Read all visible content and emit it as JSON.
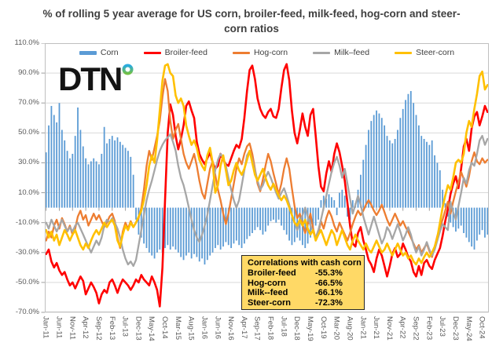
{
  "title": "% of rolling 5 year average for US corn, broiler-feed, milk-feed, hog-corn and steer-corn ratios",
  "logo": {
    "text": "DTN",
    "ring_blue": "#29ABE2",
    "ring_green": "#72BF44"
  },
  "correlation_box": {
    "title": "Correlations with cash corn",
    "background": "#FFD966",
    "rows": [
      {
        "label": "Broiler-feed",
        "value": "-55.3%"
      },
      {
        "label": "Hog-corn",
        "value": "-66.5%"
      },
      {
        "label": "Milk--feed",
        "value": "-66.1%"
      },
      {
        "label": "Steer-corn",
        "value": "-72.3%"
      }
    ]
  },
  "chart_data": {
    "type": "bar+line combo",
    "x": {
      "start": "Jan-2011",
      "end": "Dec-2024",
      "freq": "monthly",
      "count": 168
    },
    "ylim": [
      -70,
      110
    ],
    "grid": "horizontal only",
    "legend_position": "top center inside plot",
    "y_tick_labels": [
      "110.0%",
      "90.0%",
      "70.0%",
      "50.0%",
      "30.0%",
      "10.0%",
      "-10.0%",
      "-30.0%",
      "-50.0%",
      "-70.0%"
    ],
    "x_ticks": [
      {
        "i": 0,
        "label": "Jan-11"
      },
      {
        "i": 5,
        "label": "Jun-11"
      },
      {
        "i": 10,
        "label": "Nov-11"
      },
      {
        "i": 15,
        "label": "Apr-12"
      },
      {
        "i": 20,
        "label": "Sep-12"
      },
      {
        "i": 25,
        "label": "Feb-13"
      },
      {
        "i": 30,
        "label": "Jul-13"
      },
      {
        "i": 35,
        "label": "Dec-13"
      },
      {
        "i": 40,
        "label": "May-14"
      },
      {
        "i": 45,
        "label": "Oct-14"
      },
      {
        "i": 50,
        "label": "Mar-15"
      },
      {
        "i": 55,
        "label": "Aug-15"
      },
      {
        "i": 60,
        "label": "Jan-16"
      },
      {
        "i": 65,
        "label": "Jun-16"
      },
      {
        "i": 70,
        "label": "Nov-16"
      },
      {
        "i": 75,
        "label": "Apr-17"
      },
      {
        "i": 80,
        "label": "Sep-17"
      },
      {
        "i": 85,
        "label": "Feb-18"
      },
      {
        "i": 90,
        "label": "Jul-18"
      },
      {
        "i": 95,
        "label": "Dec-18"
      },
      {
        "i": 100,
        "label": "May-19"
      },
      {
        "i": 105,
        "label": "Oct-19"
      },
      {
        "i": 110,
        "label": "Mar-20"
      },
      {
        "i": 115,
        "label": "Aug-20"
      },
      {
        "i": 120,
        "label": "Jan-21"
      },
      {
        "i": 125,
        "label": "Jun-21"
      },
      {
        "i": 130,
        "label": "Nov-21"
      },
      {
        "i": 135,
        "label": "Apr-22"
      },
      {
        "i": 140,
        "label": "Sep-22"
      },
      {
        "i": 145,
        "label": "Feb-23"
      },
      {
        "i": 150,
        "label": "Jul-23"
      },
      {
        "i": 155,
        "label": "Dec-23"
      },
      {
        "i": 160,
        "label": "May-24"
      },
      {
        "i": 165,
        "label": "Oct-24"
      }
    ],
    "series": [
      {
        "name": "Corn",
        "type": "bar",
        "color": "#5B9BD5",
        "values": [
          37,
          55,
          68,
          62,
          57,
          70,
          52,
          45,
          38,
          33,
          36,
          48,
          67,
          52,
          41,
          33,
          29,
          31,
          33,
          31,
          29,
          36,
          54,
          43,
          46,
          48,
          45,
          47,
          44,
          42,
          40,
          38,
          34,
          22,
          -8,
          -18,
          -20,
          -24,
          -27,
          -30,
          -32,
          -34,
          -30,
          -28,
          -30,
          -27,
          -25,
          -28,
          -26,
          -28,
          -30,
          -33,
          -35,
          -32,
          -30,
          -34,
          -31,
          -33,
          -36,
          -34,
          -38,
          -35,
          -32,
          -30,
          -27,
          -25,
          -28,
          -26,
          -23,
          -25,
          -27,
          -24,
          -22,
          -25,
          -27,
          -24,
          -21,
          -19,
          -17,
          -15,
          -13,
          -15,
          -18,
          -16,
          -12,
          -9,
          -8,
          -10,
          -8,
          -12,
          -15,
          -18,
          -22,
          -25,
          -23,
          -20,
          -22,
          -25,
          -27,
          -24,
          -20,
          -16,
          -12,
          -8,
          5,
          8,
          6,
          9,
          7,
          5,
          -5,
          10,
          12,
          8,
          -6,
          -8,
          5,
          3,
          12,
          22,
          32,
          42,
          52,
          58,
          62,
          65,
          63,
          60,
          55,
          48,
          45,
          43,
          46,
          52,
          60,
          66,
          72,
          76,
          78,
          70,
          62,
          55,
          48,
          46,
          44,
          42,
          45,
          35,
          30,
          25,
          12,
          3,
          -6,
          -10,
          -13,
          -16,
          -14,
          -12,
          -17,
          -20,
          -23,
          -26,
          -28,
          -22,
          -18,
          -15,
          -20,
          -18
        ]
      },
      {
        "name": "Broiler-feed",
        "type": "line",
        "color": "#FF0000",
        "width": 2.6,
        "values": [
          -31,
          -28,
          -36,
          -40,
          -37,
          -42,
          -45,
          -43,
          -48,
          -52,
          -50,
          -54,
          -50,
          -46,
          -49,
          -58,
          -54,
          -50,
          -53,
          -57,
          -64,
          -58,
          -55,
          -57,
          -50,
          -48,
          -52,
          -57,
          -52,
          -48,
          -50,
          -52,
          -55,
          -52,
          -48,
          -50,
          -45,
          -48,
          -50,
          -52,
          -46,
          -50,
          -55,
          -66,
          -40,
          5,
          50,
          69,
          62,
          48,
          39,
          46,
          55,
          68,
          71,
          65,
          60,
          44,
          36,
          32,
          29,
          33,
          37,
          30,
          26,
          28,
          36,
          32,
          29,
          28,
          33,
          38,
          42,
          40,
          46,
          60,
          78,
          92,
          95,
          86,
          73,
          66,
          62,
          60,
          64,
          66,
          61,
          60,
          66,
          80,
          92,
          96,
          85,
          65,
          50,
          43,
          52,
          63,
          54,
          48,
          62,
          66,
          48,
          28,
          14,
          11,
          23,
          31,
          24,
          36,
          43,
          37,
          28,
          18,
          3,
          -12,
          -24,
          -26,
          -17,
          -13,
          -22,
          -28,
          -35,
          -38,
          -43,
          -34,
          -28,
          -32,
          -39,
          -46,
          -39,
          -31,
          -27,
          -33,
          -31,
          -24,
          -28,
          -33,
          -36,
          -43,
          -46,
          -39,
          -45,
          -37,
          -35,
          -39,
          -41,
          -35,
          -31,
          -27,
          -19,
          -9,
          -1,
          9,
          16,
          21,
          13,
          26,
          41,
          46,
          38,
          53,
          61,
          64,
          55,
          61,
          68,
          64
        ]
      },
      {
        "name": "Hog-corn",
        "type": "line",
        "color": "#ED7D31",
        "width": 2.3,
        "values": [
          -22,
          -16,
          -20,
          -12,
          -8,
          -14,
          -7,
          -11,
          -16,
          -12,
          -18,
          -14,
          -6,
          -2,
          -8,
          -5,
          -12,
          -8,
          -4,
          -8,
          -5,
          -9,
          -13,
          -10,
          -6,
          -4,
          -9,
          -20,
          -27,
          -16,
          -10,
          -14,
          -9,
          -13,
          -10,
          -7,
          0,
          12,
          28,
          38,
          32,
          40,
          48,
          58,
          74,
          86,
          78,
          58,
          46,
          52,
          56,
          46,
          36,
          30,
          26,
          31,
          36,
          28,
          18,
          10,
          6,
          16,
          26,
          31,
          22,
          12,
          5,
          -4,
          -11,
          -4,
          6,
          16,
          26,
          33,
          29,
          36,
          41,
          43,
          36,
          26,
          16,
          11,
          19,
          28,
          36,
          31,
          23,
          16,
          9,
          16,
          26,
          33,
          26,
          13,
          1,
          -7,
          -4,
          -11,
          -17,
          -11,
          -4,
          -14,
          -21,
          -17,
          -9,
          -14,
          -7,
          -2,
          -6,
          -12,
          -16,
          -10,
          -14,
          -18,
          -22,
          -17,
          -11,
          -6,
          -2,
          -5,
          -2,
          2,
          5,
          2,
          -2,
          -5,
          -2,
          2,
          -3,
          -8,
          -12,
          -8,
          -4,
          -8,
          -12,
          -9,
          -13,
          -16,
          -20,
          -24,
          -28,
          -25,
          -30,
          -27,
          -24,
          -29,
          -33,
          -26,
          -19,
          -13,
          -8,
          -2,
          4,
          -4,
          4,
          11,
          17,
          24,
          19,
          14,
          21,
          31,
          37,
          31,
          29,
          33,
          30,
          32
        ]
      },
      {
        "name": "Milk–feed",
        "type": "line",
        "color": "#A6A6A6",
        "width": 2.3,
        "values": [
          -10,
          -14,
          -8,
          -12,
          -16,
          -12,
          -8,
          -12,
          -16,
          -13,
          -16,
          -12,
          -10,
          -14,
          -18,
          -22,
          -26,
          -30,
          -26,
          -22,
          -25,
          -20,
          -12,
          -8,
          -10,
          -7,
          -10,
          -14,
          -20,
          -28,
          -34,
          -38,
          -36,
          -39,
          -35,
          -25,
          -15,
          -5,
          5,
          12,
          18,
          25,
          32,
          38,
          42,
          45,
          47,
          49,
          44,
          38,
          28,
          20,
          15,
          8,
          0,
          -8,
          -15,
          -20,
          -23,
          -18,
          -12,
          -5,
          5,
          15,
          25,
          32,
          36,
          33,
          28,
          20,
          12,
          5,
          0,
          5,
          15,
          25,
          35,
          38,
          32,
          25,
          18,
          12,
          15,
          20,
          24,
          20,
          15,
          10,
          6,
          10,
          13,
          8,
          2,
          -5,
          -10,
          -15,
          -10,
          -5,
          0,
          -6,
          -12,
          -16,
          -20,
          -15,
          -8,
          0,
          8,
          16,
          24,
          30,
          34,
          28,
          20,
          26,
          16,
          6,
          -4,
          2,
          8,
          2,
          -6,
          -12,
          -18,
          -12,
          -6,
          -12,
          -18,
          -24,
          -20,
          -13,
          -16,
          -21,
          -16,
          -11,
          -16,
          -22,
          -18,
          -13,
          -18,
          -25,
          -30,
          -26,
          -32,
          -28,
          -23,
          -28,
          -32,
          -28,
          -22,
          -16,
          -11,
          -13,
          -15,
          4,
          -3,
          -8,
          1,
          10,
          20,
          16,
          25,
          30,
          28,
          36,
          45,
          48,
          42,
          46
        ]
      },
      {
        "name": "Steer-corn",
        "type": "line",
        "color": "#FFC000",
        "width": 2.6,
        "values": [
          -15,
          -20,
          -16,
          -22,
          -18,
          -25,
          -20,
          -15,
          -18,
          -22,
          -18,
          -15,
          -20,
          -25,
          -28,
          -24,
          -27,
          -22,
          -18,
          -15,
          -18,
          -14,
          -10,
          -13,
          -10,
          -8,
          -12,
          -22,
          -26,
          -18,
          -12,
          -15,
          -10,
          -13,
          -10,
          -6,
          -2,
          5,
          15,
          28,
          35,
          30,
          45,
          65,
          85,
          95,
          96,
          90,
          88,
          75,
          70,
          73,
          68,
          55,
          48,
          42,
          45,
          40,
          32,
          28,
          25,
          35,
          40,
          30,
          10,
          15,
          28,
          35,
          25,
          15,
          18,
          25,
          30,
          25,
          22,
          26,
          32,
          38,
          30,
          22,
          18,
          22,
          26,
          20,
          15,
          12,
          16,
          12,
          8,
          5,
          8,
          5,
          0,
          -5,
          -10,
          -12,
          -8,
          -12,
          -8,
          -14,
          -18,
          -15,
          -22,
          -18,
          -15,
          -20,
          -25,
          -20,
          -15,
          -18,
          -25,
          -20,
          -15,
          -20,
          -25,
          -28,
          -22,
          -18,
          -22,
          -25,
          -28,
          -24,
          -28,
          -30,
          -26,
          -22,
          -26,
          -30,
          -28,
          -24,
          -28,
          -32,
          -28,
          -24,
          -28,
          -32,
          -30,
          -34,
          -32,
          -36,
          -38,
          -34,
          -37,
          -33,
          -30,
          -33,
          -30,
          -26,
          -20,
          -10,
          0,
          8,
          15,
          12,
          20,
          30,
          32,
          30,
          36,
          50,
          58,
          54,
          66,
          76,
          88,
          91,
          79,
          82
        ]
      }
    ],
    "colors": {
      "plot_border": "#BFBFBF",
      "gridline": "#D9D9D9",
      "zero_axis": "#9f9f9f",
      "tick_text": "#595959"
    }
  }
}
